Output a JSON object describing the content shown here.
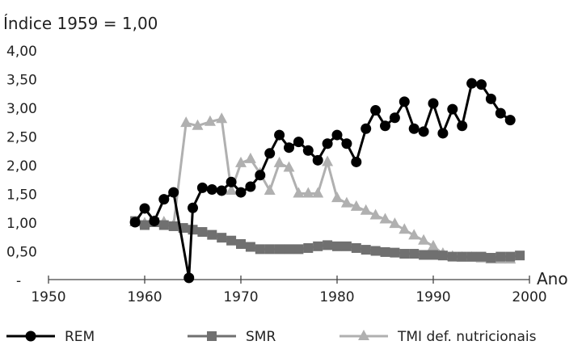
{
  "chart_data": {
    "type": "line",
    "title": "Índice 1959 = 1,00",
    "xlabel": "Ano",
    "ylabel": "",
    "xlim": [
      1950,
      2000
    ],
    "ylim": [
      0,
      4
    ],
    "x_ticks": [
      "1950",
      "1960",
      "1970",
      "1980",
      "1990",
      "2000"
    ],
    "y_ticks": [
      "-",
      "0,50",
      "1,00",
      "1,50",
      "2,00",
      "2,50",
      "3,00",
      "3,50",
      "4,00"
    ],
    "grid": false,
    "legend": "bottom",
    "series": [
      {
        "name": "REM",
        "color": "#000000",
        "marker": "circle",
        "x": [
          1959,
          1960,
          1961,
          1962,
          1963,
          1964.6,
          1965,
          1966,
          1967,
          1968,
          1969,
          1970,
          1971,
          1972,
          1973,
          1974,
          1975,
          1976,
          1977,
          1978,
          1979,
          1980,
          1981,
          1982,
          1983,
          1984,
          1985,
          1986,
          1987,
          1988,
          1989,
          1990,
          1991,
          1992,
          1993,
          1994,
          1995,
          1996,
          1997,
          1998
        ],
        "values": [
          1.0,
          1.24,
          1.02,
          1.4,
          1.52,
          0.03,
          1.25,
          1.6,
          1.57,
          1.55,
          1.7,
          1.52,
          1.62,
          1.82,
          2.2,
          2.52,
          2.3,
          2.4,
          2.25,
          2.08,
          2.37,
          2.52,
          2.37,
          2.05,
          2.63,
          2.95,
          2.68,
          2.82,
          3.1,
          2.63,
          2.58,
          3.07,
          2.55,
          2.97,
          2.68,
          3.42,
          3.4,
          3.15,
          2.9,
          2.78
        ]
      },
      {
        "name": "SMR",
        "color": "#707070",
        "marker": "square",
        "x": [
          1959,
          1960,
          1961,
          1962,
          1963,
          1964,
          1965,
          1966,
          1967,
          1968,
          1969,
          1970,
          1971,
          1972,
          1973,
          1974,
          1975,
          1976,
          1977,
          1978,
          1979,
          1980,
          1981,
          1982,
          1983,
          1984,
          1985,
          1986,
          1987,
          1988,
          1989,
          1990,
          1991,
          1992,
          1993,
          1994,
          1995,
          1996,
          1997,
          1998,
          1999
        ],
        "values": [
          1.02,
          0.95,
          1.0,
          0.95,
          0.93,
          0.9,
          0.87,
          0.83,
          0.78,
          0.73,
          0.68,
          0.62,
          0.57,
          0.53,
          0.53,
          0.53,
          0.53,
          0.53,
          0.55,
          0.58,
          0.6,
          0.58,
          0.58,
          0.55,
          0.52,
          0.5,
          0.48,
          0.47,
          0.45,
          0.45,
          0.43,
          0.43,
          0.42,
          0.4,
          0.4,
          0.4,
          0.4,
          0.38,
          0.4,
          0.4,
          0.42
        ]
      },
      {
        "name": "TMI def. nutricionais",
        "color": "#b0b0b0",
        "marker": "triangle",
        "x": [
          1959,
          1960,
          1961,
          1962,
          1963,
          1964.3,
          1965.5,
          1966.8,
          1968,
          1969,
          1970,
          1971,
          1972,
          1973,
          1974,
          1975,
          1976,
          1977,
          1978,
          1979,
          1980,
          1981,
          1982,
          1983,
          1984,
          1985,
          1986,
          1987,
          1988,
          1989,
          1990,
          1991,
          1992,
          1993,
          1994,
          1995,
          1996,
          1997,
          1998
        ],
        "values": [
          1.0,
          0.98,
          1.02,
          1.0,
          0.95,
          2.73,
          2.68,
          2.75,
          2.8,
          1.55,
          2.03,
          2.1,
          1.85,
          1.55,
          2.03,
          1.95,
          1.5,
          1.5,
          1.5,
          2.05,
          1.42,
          1.33,
          1.27,
          1.2,
          1.12,
          1.05,
          0.97,
          0.87,
          0.77,
          0.68,
          0.58,
          0.45,
          0.4,
          0.38,
          0.38,
          0.37,
          0.35,
          0.35,
          0.35
        ]
      }
    ]
  }
}
